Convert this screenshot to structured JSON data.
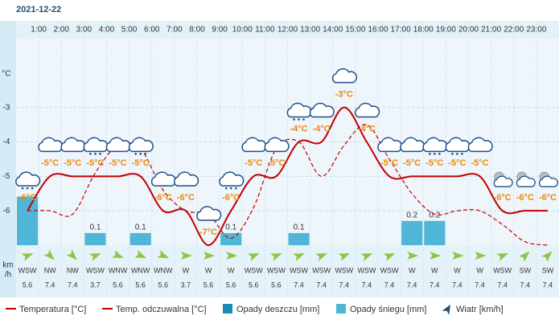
{
  "date": "2021-12-22",
  "chart_data": {
    "type": "meteogram",
    "categories": [
      null,
      "1:00",
      "2:00",
      "3:00",
      "4:00",
      "5:00",
      "6:00",
      "7:00",
      "8:00",
      "9:00",
      "10:00",
      "11:00",
      "12:00",
      "13:00",
      "14:00",
      "15:00",
      "16:00",
      "17:00",
      "18:00",
      "19:00",
      "20:00",
      "21:00",
      "22:00",
      "23:00"
    ],
    "y_unit": "°C",
    "ylim": [
      -7,
      -1
    ],
    "yticks": [
      -6,
      -5,
      -4,
      -3
    ],
    "y2lim": [
      0,
      1.7
    ],
    "grid": true,
    "series": [
      {
        "name": "Temperatura [°C]",
        "color": "#c00000",
        "values": [
          -6,
          -5,
          -5,
          -5,
          -5,
          -5,
          -6,
          -6,
          -7,
          -6,
          -5,
          -5,
          -4,
          -4,
          -3,
          -4,
          -5,
          -5,
          -5,
          -5,
          -5,
          -6,
          -6,
          -6
        ],
        "value_labels": [
          "-6°C",
          "-5°C",
          "-5°C",
          "-5°C",
          "-5°C",
          "-5°C",
          "-6°C",
          "-6°C",
          "-7°C",
          "-6°C",
          "-5°C",
          "-5°C",
          "-4°C",
          "-4°C",
          "-3°C",
          "-4°C",
          "-5°C",
          "-5°C",
          "-5°C",
          "-5°C",
          "-5°C",
          "-6°C",
          "-6°C",
          "-6°C"
        ]
      },
      {
        "name": "Temp. odczuwalna [°C]",
        "color": "#c00000",
        "dashed": true,
        "values": [
          -6,
          -6,
          -6.1,
          -4.9,
          -4.1,
          -4.2,
          -5.4,
          -6,
          -6.1,
          -6.8,
          -5.9,
          -4.2,
          -4,
          -5,
          -4.1,
          -3.5,
          -4.5,
          -5.5,
          -6.1,
          -6,
          -6,
          -6.4,
          -6.9,
          -7
        ]
      },
      {
        "name": "Opady deszczu [mm]",
        "color": "#1a8ab5",
        "axis": "y2",
        "values": [
          null,
          null,
          null,
          null,
          null,
          null,
          null,
          null,
          null,
          null,
          null,
          null,
          null,
          null,
          null,
          null,
          null,
          null,
          null,
          null,
          null,
          null,
          null,
          null
        ]
      },
      {
        "name": "Opady śniegu [mm]",
        "color": "#4fb6d8",
        "axis": "y2",
        "values": [
          0.4,
          null,
          null,
          0.1,
          null,
          0.1,
          null,
          null,
          null,
          0.1,
          null,
          null,
          0.1,
          null,
          null,
          null,
          null,
          0.2,
          0.2,
          null,
          null,
          null,
          null,
          null
        ],
        "value_labels": [
          null,
          null,
          null,
          "0.1",
          null,
          "0.1",
          null,
          null,
          null,
          "0.1",
          null,
          null,
          "0.1",
          null,
          null,
          null,
          null,
          "0.2",
          "0.2",
          null,
          null,
          null,
          null,
          null
        ]
      }
    ],
    "wind": {
      "name": "Wiatr [km/h]",
      "color": "#8dc63f",
      "unit": [
        "km",
        "/h"
      ],
      "directions": [
        "WSW",
        "NW",
        "NW",
        "WSW",
        "WNW",
        "WNW",
        "WNW",
        "W",
        "W",
        "W",
        "WSW",
        "WSW",
        "WSW",
        "WSW",
        "WSW",
        "WSW",
        "WSW",
        "W",
        "W",
        "W",
        "W",
        "WSW",
        "SW",
        "SW"
      ],
      "values": [
        5.6,
        7.4,
        7.4,
        3.7,
        5.6,
        5.6,
        5.6,
        3.7,
        5.6,
        5.6,
        5.6,
        5.6,
        7.4,
        7.4,
        7.4,
        7.4,
        7.4,
        7.4,
        7.4,
        7.4,
        7.4,
        7.4,
        7.4,
        7.4
      ]
    }
  }
}
